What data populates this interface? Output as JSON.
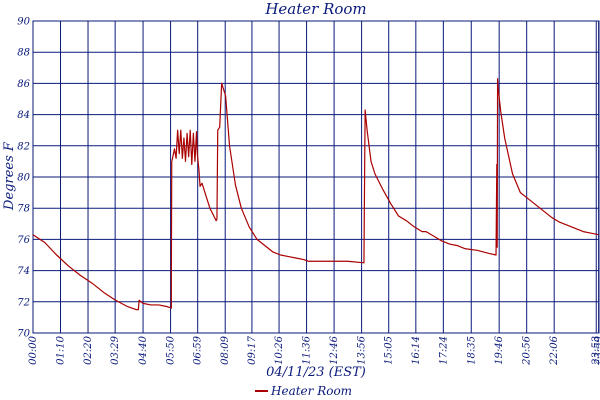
{
  "chart_data": {
    "type": "line",
    "title": "Heater Room",
    "xlabel": "04/11/23 (EST)",
    "ylabel": "Degrees F",
    "ylim": [
      70,
      90
    ],
    "yticks": [
      "70",
      "72",
      "74",
      "76",
      "78",
      "80",
      "82",
      "84",
      "86",
      "88",
      "90"
    ],
    "xlim": [
      0,
      1440
    ],
    "xticks": [
      {
        "t": 0,
        "label": "00:00"
      },
      {
        "t": 70,
        "label": "01:10"
      },
      {
        "t": 140,
        "label": "02:20"
      },
      {
        "t": 209,
        "label": "03:29"
      },
      {
        "t": 280,
        "label": "04:40"
      },
      {
        "t": 350,
        "label": "05:50"
      },
      {
        "t": 419,
        "label": "06:59"
      },
      {
        "t": 489,
        "label": "08:09"
      },
      {
        "t": 557,
        "label": "09:17"
      },
      {
        "t": 626,
        "label": "10:26"
      },
      {
        "t": 696,
        "label": "11:36"
      },
      {
        "t": 766,
        "label": "12:46"
      },
      {
        "t": 836,
        "label": "13:56"
      },
      {
        "t": 905,
        "label": "15:05"
      },
      {
        "t": 974,
        "label": "16:14"
      },
      {
        "t": 1044,
        "label": "17:24"
      },
      {
        "t": 1115,
        "label": "18:35"
      },
      {
        "t": 1186,
        "label": "19:46"
      },
      {
        "t": 1256,
        "label": "20:56"
      },
      {
        "t": 1326,
        "label": "22:06"
      },
      {
        "t": 1433,
        "label": "23:53"
      },
      {
        "t": 1439,
        "label": "23:59"
      }
    ],
    "grid": true,
    "legend_position": "bottom-center",
    "series": [
      {
        "name": "Heater Room",
        "color": "#aa0000",
        "x": [
          0,
          30,
          60,
          90,
          120,
          150,
          180,
          210,
          240,
          262,
          268,
          270,
          280,
          300,
          320,
          340,
          352,
          352,
          353,
          355,
          360,
          364,
          368,
          372,
          376,
          380,
          384,
          388,
          392,
          396,
          400,
          404,
          408,
          412,
          416,
          418,
          422,
          425,
          430,
          440,
          450,
          460,
          466,
          468,
          470,
          475,
          480,
          490,
          500,
          515,
          530,
          550,
          570,
          590,
          610,
          630,
          650,
          670,
          690,
          700,
          720,
          760,
          800,
          842,
          843,
          845,
          850,
          860,
          870,
          890,
          910,
          930,
          950,
          970,
          990,
          1000,
          1020,
          1040,
          1060,
          1080,
          1100,
          1130,
          1160,
          1178,
          1180,
          1181,
          1182,
          1183,
          1190,
          1200,
          1220,
          1240,
          1260,
          1280,
          1300,
          1320,
          1340,
          1360,
          1380,
          1400,
          1420,
          1439
        ],
        "y": [
          76.3,
          75.8,
          75.0,
          74.3,
          73.7,
          73.2,
          72.6,
          72.1,
          71.7,
          71.5,
          71.5,
          72.1,
          71.9,
          71.8,
          71.8,
          71.7,
          71.6,
          74.0,
          81.0,
          81.2,
          81.8,
          81.2,
          83.0,
          81.5,
          83.0,
          81.2,
          82.5,
          81.0,
          82.8,
          81.3,
          83.0,
          80.8,
          82.8,
          81.0,
          82.9,
          81.5,
          80.5,
          79.4,
          79.6,
          78.8,
          78.0,
          77.5,
          77.2,
          77.3,
          83.0,
          83.2,
          86.0,
          85.2,
          82.0,
          79.5,
          78.0,
          76.8,
          76.0,
          75.6,
          75.2,
          75.0,
          74.9,
          74.8,
          74.7,
          74.6,
          74.6,
          74.6,
          74.6,
          74.5,
          78.0,
          84.3,
          83.0,
          81.0,
          80.2,
          79.2,
          78.3,
          77.5,
          77.2,
          76.8,
          76.5,
          76.5,
          76.2,
          75.9,
          75.7,
          75.6,
          75.4,
          75.3,
          75.1,
          75.0,
          80.8,
          75.5,
          86.3,
          85.8,
          84.2,
          82.5,
          80.2,
          79.0,
          78.6,
          78.2,
          77.8,
          77.4,
          77.1,
          76.9,
          76.7,
          76.5,
          76.4,
          76.3
        ]
      }
    ]
  }
}
